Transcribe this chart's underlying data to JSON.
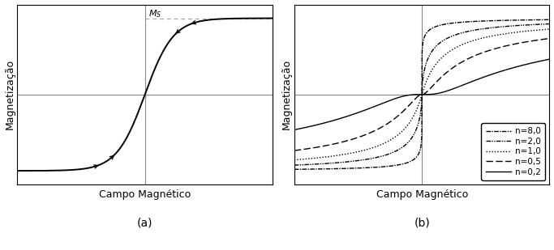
{
  "title_a": "(a)",
  "title_b": "(b)",
  "xlabel": "Campo Magnético",
  "ylabel": "Magnetização",
  "ms_label": "M$_S$",
  "n_values": [
    8.0,
    2.0,
    1.0,
    0.5,
    0.2
  ],
  "legend_labels": [
    "n=8,0",
    "n=2,0",
    "n=1,0",
    "n=0,5",
    "n=0,2"
  ],
  "line_color": "#000000",
  "dashed_color": "#aaaaaa",
  "axis_color": "#888888",
  "figsize": [
    6.83,
    3.09
  ],
  "dpi": 100
}
